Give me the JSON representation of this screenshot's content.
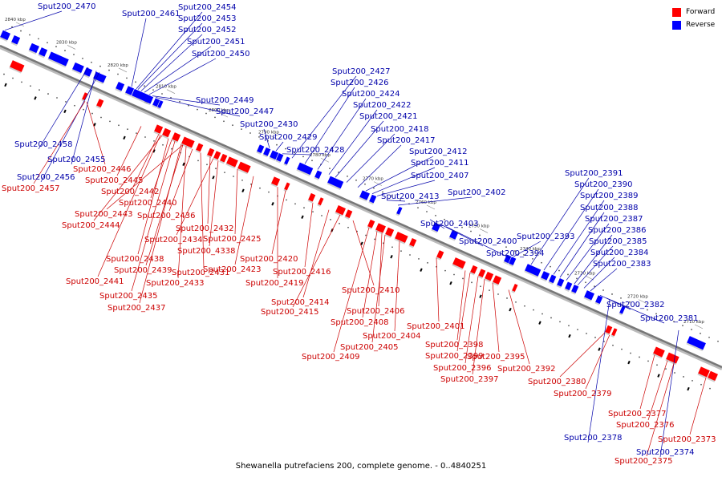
{
  "legend": [
    {
      "label": "Forward",
      "color": "#ff0000"
    },
    {
      "label": "Reverse",
      "color": "#0000ff"
    }
  ],
  "caption": "Shewanella putrefaciens 200, complete genome. - 0..4840251",
  "ticks": [
    "2840 kbp",
    "2830 kbp",
    "2820 kbp",
    "2810 kbp",
    "2800 kbp",
    "2790 kbp",
    "2780 kbp",
    "2770 kbp",
    "2760 kbp",
    "2750 kbp",
    "2740 kbp",
    "2730 kbp",
    "2720 kbp",
    "2710 kbp"
  ],
  "colors": {
    "forward": "#ff0000",
    "reverse": "#0000ff",
    "forward_label": "#cc0000",
    "reverse_label": "#0000aa",
    "axis": "#777777"
  },
  "reverse_genes": [
    "Sput200_2470",
    "Sput200_2461",
    "Sput200_2454",
    "Sput200_2453",
    "Sput200_2452",
    "Sput200_2451",
    "Sput200_2450",
    "Sput200_2449",
    "Sput200_2447",
    "Sput200_2458",
    "Sput200_2455",
    "Sput200_2456",
    "Sput200_2430",
    "Sput200_2429",
    "Sput200_2428",
    "Sput200_2427",
    "Sput200_2426",
    "Sput200_2424",
    "Sput200_2422",
    "Sput200_2421",
    "Sput200_2418",
    "Sput200_2417",
    "Sput200_2412",
    "Sput200_2411",
    "Sput200_2407",
    "Sput200_2413",
    "Sput200_2402",
    "Sput200_2403",
    "Sput200_2400",
    "Sput200_2394",
    "Sput200_2393",
    "Sput200_2391",
    "Sput200_2390",
    "Sput200_2389",
    "Sput200_2388",
    "Sput200_2387",
    "Sput200_2386",
    "Sput200_2385",
    "Sput200_2384",
    "Sput200_2383",
    "Sput200_2382",
    "Sput200_2381",
    "Sput200_2378",
    "Sput200_2374"
  ],
  "forward_genes": [
    "Sput200_2446",
    "Sput200_2457",
    "Sput200_2445",
    "Sput200_2442",
    "Sput200_2440",
    "Sput200_2443",
    "Sput200_2436",
    "Sput200_2444",
    "Sput200_2432",
    "Sput200_2434",
    "Sput200_4338",
    "Sput200_2425",
    "Sput200_2438",
    "Sput200_2439",
    "Sput200_2431",
    "Sput200_2441",
    "Sput200_2433",
    "Sput200_2435",
    "Sput200_2437",
    "Sput200_2423",
    "Sput200_2420",
    "Sput200_2416",
    "Sput200_2419",
    "Sput200_2410",
    "Sput200_2414",
    "Sput200_2415",
    "Sput200_2406",
    "Sput200_2408",
    "Sput200_2404",
    "Sput200_2405",
    "Sput200_2409",
    "Sput200_2401",
    "Sput200_2398",
    "Sput200_2399",
    "Sput200_2396",
    "Sput200_2397",
    "Sput200_2395",
    "Sput200_2392",
    "Sput200_2380",
    "Sput200_2379",
    "Sput200_2377",
    "Sput200_2376",
    "Sput200_2373",
    "Sput200_2375"
  ]
}
